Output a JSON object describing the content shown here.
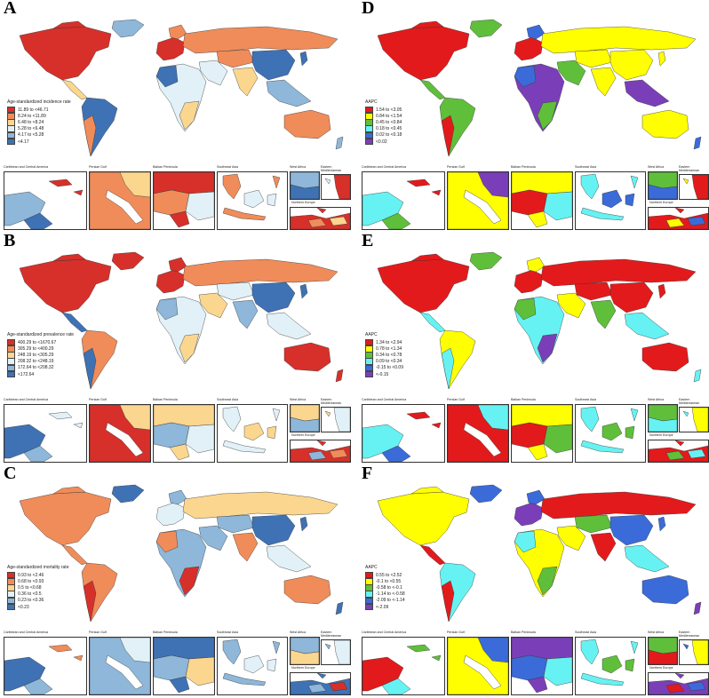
{
  "panels": [
    {
      "letter": "A",
      "legend_title": "Age-standardized incidence rate",
      "legend": [
        "11.89 to <46.71",
        "8.24 to <11.89",
        "6.48 to <8.24",
        "5.28 to <6.48",
        "4.17 to <5.28",
        "<4.17"
      ],
      "colors": [
        "#d7302a",
        "#f08c5a",
        "#fbd68f",
        "#e1f1f7",
        "#8eb7d9",
        "#3f72b4"
      ],
      "regions": {
        "na": 0,
        "greenland": 4,
        "ca": 2,
        "sa": 5,
        "sa2": 1,
        "eu": 0,
        "eu2": 1,
        "ru": 1,
        "af": 3,
        "af2": 5,
        "af3": 2,
        "me": 3,
        "ca_asia": 1,
        "ch": 5,
        "in": 2,
        "sea": 4,
        "au": 1,
        "nz": 4
      }
    },
    {
      "letter": "B",
      "legend_title": "Age-standardized prevalence rate",
      "legend": [
        "400.29 to <1670.67",
        "305.29 to <400.29",
        "248.19 to <305.29",
        "208.32 to <248.19",
        "172.64 to <208.32",
        "<172.64"
      ],
      "colors": [
        "#d7302a",
        "#f08c5a",
        "#fbd68f",
        "#e1f1f7",
        "#8eb7d9",
        "#3f72b4"
      ],
      "regions": {
        "na": 0,
        "greenland": 0,
        "ca": 5,
        "sa": 1,
        "sa2": 5,
        "eu": 0,
        "eu2": 0,
        "ru": 1,
        "af": 3,
        "af2": 4,
        "af3": 2,
        "me": 2,
        "ca_asia": 3,
        "ch": 5,
        "in": 4,
        "sea": 3,
        "au": 0,
        "nz": 0
      }
    },
    {
      "letter": "C",
      "legend_title": "Age-standardized mortality rate",
      "legend": [
        "0.93 to <2.46",
        "0.68 to <0.93",
        "0.5 to <0.68",
        "0.36 to <0.5",
        "0.23 to <0.36",
        "<0.23"
      ],
      "colors": [
        "#d7302a",
        "#f08c5a",
        "#fbd68f",
        "#e1f1f7",
        "#8eb7d9",
        "#3f72b4"
      ],
      "regions": {
        "na": 1,
        "greenland": 5,
        "ca": 1,
        "sa": 1,
        "sa2": 0,
        "eu": 3,
        "eu2": 4,
        "ru": 2,
        "af": 4,
        "af2": 1,
        "af3": 0,
        "me": 4,
        "ca_asia": 4,
        "ch": 5,
        "in": 1,
        "sea": 3,
        "au": 1,
        "nz": 5
      }
    },
    {
      "letter": "D",
      "legend_title": "AAPC",
      "legend": [
        "1.54 to <3.05",
        "0.84 to <1.54",
        "0.45 to <0.84",
        "0.18 to <0.45",
        "0.02 to <0.18",
        "<0.02"
      ],
      "colors": [
        "#e31a1c",
        "#ffff00",
        "#5fbf3b",
        "#66f2f2",
        "#3b6bd9",
        "#7a3fb8"
      ],
      "regions": {
        "na": 0,
        "greenland": 2,
        "ca": 2,
        "sa": 2,
        "sa2": 0,
        "eu": 0,
        "eu2": 4,
        "ru": 1,
        "af": 5,
        "af2": 4,
        "af3": 2,
        "me": 2,
        "ca_asia": 1,
        "ch": 1,
        "in": 1,
        "sea": 5,
        "au": 1,
        "nz": 4
      }
    },
    {
      "letter": "E",
      "legend_title": "AAPC",
      "legend": [
        "1.34 to <2.94",
        "0.78 to <1.34",
        "0.34 to <0.78",
        "0.09 to <0.34",
        "-0.15 to <0.09",
        "<-0.15"
      ],
      "colors": [
        "#e31a1c",
        "#ffff00",
        "#5fbf3b",
        "#66f2f2",
        "#3b6bd9",
        "#7a3fb8"
      ],
      "regions": {
        "na": 0,
        "greenland": 2,
        "ca": 3,
        "sa": 1,
        "sa2": 3,
        "eu": 0,
        "eu2": 1,
        "ru": 0,
        "af": 3,
        "af2": 2,
        "af3": 5,
        "me": 1,
        "ca_asia": 0,
        "ch": 0,
        "in": 2,
        "sea": 3,
        "au": 0,
        "nz": 3
      }
    },
    {
      "letter": "F",
      "legend_title": "AAPC",
      "legend": [
        "0.55 to <2.52",
        "-0.1 to <0.55",
        "-0.58 to <-0.1",
        "-1.14 to <-0.58",
        "-2.09 to <-1.14",
        "<-2.09"
      ],
      "colors": [
        "#e31a1c",
        "#ffff00",
        "#5fbf3b",
        "#66f2f2",
        "#3b6bd9",
        "#7a3fb8"
      ],
      "regions": {
        "na": 1,
        "greenland": 4,
        "ca": 0,
        "sa": 3,
        "sa2": 0,
        "eu": 5,
        "eu2": 4,
        "ru": 0,
        "af": 1,
        "af2": 3,
        "af3": 2,
        "me": 1,
        "ca_asia": 2,
        "ch": 4,
        "in": 0,
        "sea": 3,
        "au": 4,
        "nz": 5
      }
    }
  ],
  "insets": {
    "caribbean": "Caribbean and Central America",
    "persian_gulf": "Persian Gulf",
    "balkan": "Balkan Peninsula",
    "southeast_asia": "Southeast Asia",
    "west_africa": "West Africa",
    "eastern_med": "Eastern Mediterranean",
    "northern_europe": "Northern Europe"
  },
  "inset_colors": [
    {
      "carib": [
        4,
        5,
        0
      ],
      "gulf": [
        1,
        2
      ],
      "balkan": [
        0,
        1,
        3
      ],
      "sea": [
        1,
        3
      ],
      "wa": [
        4,
        5
      ],
      "em": [
        0,
        3
      ],
      "ne": [
        0,
        1,
        2
      ]
    },
    {
      "carib": [
        5,
        4,
        3
      ],
      "gulf": [
        0,
        2
      ],
      "balkan": [
        2,
        4,
        3
      ],
      "sea": [
        3,
        2
      ],
      "wa": [
        2,
        4
      ],
      "em": [
        3,
        2
      ],
      "ne": [
        0,
        4,
        1
      ]
    },
    {
      "carib": [
        5,
        4,
        1
      ],
      "gulf": [
        4,
        3
      ],
      "balkan": [
        5,
        4,
        2
      ],
      "sea": [
        4,
        3
      ],
      "wa": [
        4,
        2
      ],
      "em": [
        3,
        4
      ],
      "ne": [
        5,
        4,
        0
      ]
    },
    {
      "carib": [
        3,
        2,
        0
      ],
      "gulf": [
        1,
        5
      ],
      "balkan": [
        1,
        0,
        3
      ],
      "sea": [
        3,
        4
      ],
      "wa": [
        2,
        4
      ],
      "em": [
        0,
        1
      ],
      "ne": [
        0,
        1,
        4
      ]
    },
    {
      "carib": [
        3,
        4,
        0
      ],
      "gulf": [
        0,
        3
      ],
      "balkan": [
        1,
        0,
        2
      ],
      "sea": [
        3,
        2
      ],
      "wa": [
        2,
        3
      ],
      "em": [
        1,
        3
      ],
      "ne": [
        0,
        2,
        3
      ]
    },
    {
      "carib": [
        0,
        3,
        2
      ],
      "gulf": [
        1,
        4
      ],
      "balkan": [
        5,
        4,
        3
      ],
      "sea": [
        3,
        2
      ],
      "wa": [
        2,
        0
      ],
      "em": [
        1,
        4
      ],
      "ne": [
        5,
        0,
        4
      ]
    }
  ]
}
